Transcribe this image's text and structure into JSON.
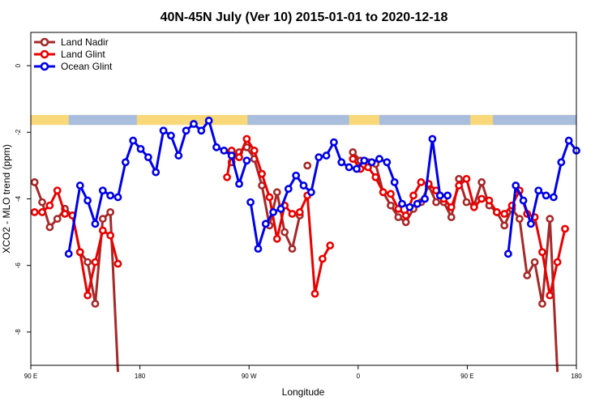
{
  "chart_data": {
    "type": "line",
    "title": "40N-45N July (Ver 10)   2015-01-01 to 2020-12-18",
    "xlabel": "Longitude",
    "ylabel": "XCO2 - MLO trend (ppm)",
    "xlim": [
      90,
      450
    ],
    "ylim": [
      -9,
      1
    ],
    "x_ticks": [
      {
        "value": 90,
        "label": "90 E"
      },
      {
        "value": 162,
        "label": "180"
      },
      {
        "value": 234,
        "label": "90 W"
      },
      {
        "value": 306,
        "label": "0"
      },
      {
        "value": 378,
        "label": "90 E"
      },
      {
        "value": 450,
        "label": "180"
      }
    ],
    "y_ticks": [
      {
        "value": 0,
        "label": "0"
      },
      {
        "value": -2,
        "label": "-2"
      },
      {
        "value": -4,
        "label": "-4"
      },
      {
        "value": -6,
        "label": "-6"
      },
      {
        "value": -8,
        "label": "-8"
      }
    ],
    "legend_position": "top-left",
    "land_mask_band": {
      "y_top": -1.48,
      "y_bottom": -1.78,
      "ocean_color": "#a8bedc",
      "land_color": "#f8d878"
    },
    "series": [
      {
        "name": "Land Nadir",
        "color": "#a52a2a",
        "x": [
          92.5,
          97.5,
          102.5,
          107.5,
          112.5,
          117.5,
          122.5,
          127.5,
          132.5,
          137.5,
          142.5,
          147.5,
          152.5,
          222.5,
          227.5,
          232.5,
          237.5,
          242.5,
          247.5,
          252.5,
          257.5,
          262.5,
          267.5,
          272.5,
          277.5,
          282.5,
          302.5,
          307.5,
          312.5,
          317.5,
          322.5,
          327.5,
          332.5,
          337.5,
          342.5,
          347.5,
          352.5,
          357.5,
          362.5,
          367.5,
          372.5,
          377.5,
          382.5,
          387.5,
          392.5,
          397.5,
          402.5,
          407.5,
          412.5,
          417.5,
          422.5,
          427.5,
          432.5,
          437.5
        ],
        "y": [
          -3.5,
          -4.1,
          -4.85,
          -4.6,
          -4.3,
          -4.5,
          -5.6,
          -5.9,
          -7.15,
          -4.6,
          -4.4,
          -9.2,
          null,
          -2.9,
          -2.6,
          -2.45,
          -2.8,
          -3.6,
          -4.8,
          -3.8,
          -5.0,
          -5.5,
          -4.5,
          -3.0,
          null,
          null,
          -2.6,
          -2.85,
          -2.9,
          -2.95,
          -3.8,
          -4.2,
          -4.55,
          -4.7,
          -4.3,
          -4.1,
          -3.6,
          -4.1,
          -4.1,
          -4.55,
          -3.4,
          -4.1,
          -4.2,
          -3.5,
          -4.2,
          -4.4,
          -4.8,
          -4.3,
          -4.6,
          -6.3,
          -5.9,
          -7.15,
          -4.6,
          -9.2
        ],
        "segments": [
          [
            0,
            11
          ],
          [
            13,
            22
          ],
          [
            26,
            53
          ]
        ]
      },
      {
        "name": "Land Glint",
        "color": "#e80000",
        "x": [
          92.5,
          97.5,
          102.5,
          107.5,
          112.5,
          117.5,
          122.5,
          127.5,
          132.5,
          137.5,
          142.5,
          147.5,
          219.5,
          222.5,
          227.5,
          232.5,
          237.5,
          242.5,
          247.5,
          252.5,
          257.5,
          262.5,
          267.5,
          272.5,
          277.5,
          282.5,
          287.5,
          302.5,
          307.5,
          312.5,
          317.5,
          322.5,
          327.5,
          332.5,
          337.5,
          342.5,
          347.5,
          352.5,
          357.5,
          362.5,
          367.5,
          372.5,
          377.5,
          382.5,
          387.5,
          392.5,
          397.5,
          402.5,
          407.5,
          412.5,
          417.5,
          422.5,
          427.5,
          432.5,
          437.5,
          442.5
        ],
        "y": [
          -4.4,
          -4.4,
          -4.2,
          -3.75,
          -4.45,
          -4.5,
          -5.6,
          -6.9,
          -5.9,
          -4.95,
          -5.1,
          -5.95,
          -3.35,
          -2.55,
          -2.75,
          -2.2,
          -2.55,
          -3.25,
          -3.95,
          -5.2,
          -4.2,
          -4.45,
          -4.4,
          -3.9,
          -6.85,
          -5.8,
          -5.4,
          -2.8,
          -3.1,
          -3.05,
          -3.35,
          -3.8,
          -3.85,
          -4.3,
          -4.5,
          -3.9,
          -3.5,
          -3.55,
          -3.75,
          -4.0,
          -4.25,
          -3.6,
          -3.4,
          -4.25,
          -4.0,
          -4.05,
          -4.4,
          -4.45,
          -4.2,
          -3.75,
          -4.45,
          -4.55,
          -5.6,
          -6.9,
          -5.9,
          -4.9
        ],
        "segments": [
          [
            0,
            11
          ],
          [
            12,
            26
          ],
          [
            27,
            55
          ]
        ]
      },
      {
        "name": "Ocean Glint",
        "color": "#0000e6",
        "x": [
          115,
          122.5,
          127.5,
          132.5,
          137.5,
          142.5,
          147.5,
          152.5,
          157.5,
          162.5,
          167.5,
          172.5,
          177.5,
          182.5,
          187.5,
          192.5,
          197.5,
          202.5,
          207.5,
          212.5,
          217.5,
          222.5,
          227.5,
          232.5,
          235,
          240,
          245,
          250,
          255,
          260,
          265,
          270,
          275,
          280,
          285,
          290,
          295,
          300,
          305,
          310,
          315,
          320,
          325,
          330,
          335,
          340,
          345,
          350,
          355,
          360,
          365,
          405,
          410,
          415,
          420,
          425,
          430,
          435,
          440,
          445,
          450
        ],
        "y": [
          -5.65,
          -3.6,
          -4.05,
          -4.75,
          -3.75,
          -3.9,
          -3.95,
          -2.9,
          -2.25,
          -2.5,
          -2.75,
          -3.2,
          -1.95,
          -2.1,
          -2.7,
          -1.95,
          -1.75,
          -1.95,
          -1.65,
          -2.45,
          -2.55,
          -2.7,
          -3.55,
          -2.85,
          -4.1,
          -5.5,
          -4.75,
          -4.4,
          -4.3,
          -3.7,
          -3.3,
          -3.6,
          -3.8,
          -2.75,
          -2.7,
          -2.3,
          -2.9,
          -3.05,
          -3.1,
          -2.85,
          -2.9,
          -2.8,
          -2.9,
          -3.5,
          -4.15,
          -4.25,
          -4.15,
          -4.0,
          -2.2,
          -3.9,
          -3.9,
          -5.65,
          -3.6,
          -4.05,
          -4.75,
          -3.75,
          -3.9,
          -3.95,
          -2.9,
          -2.25,
          -2.55
        ],
        "segments": [
          [
            0,
            23
          ],
          [
            24,
            50
          ],
          [
            51,
            60
          ]
        ]
      }
    ]
  }
}
